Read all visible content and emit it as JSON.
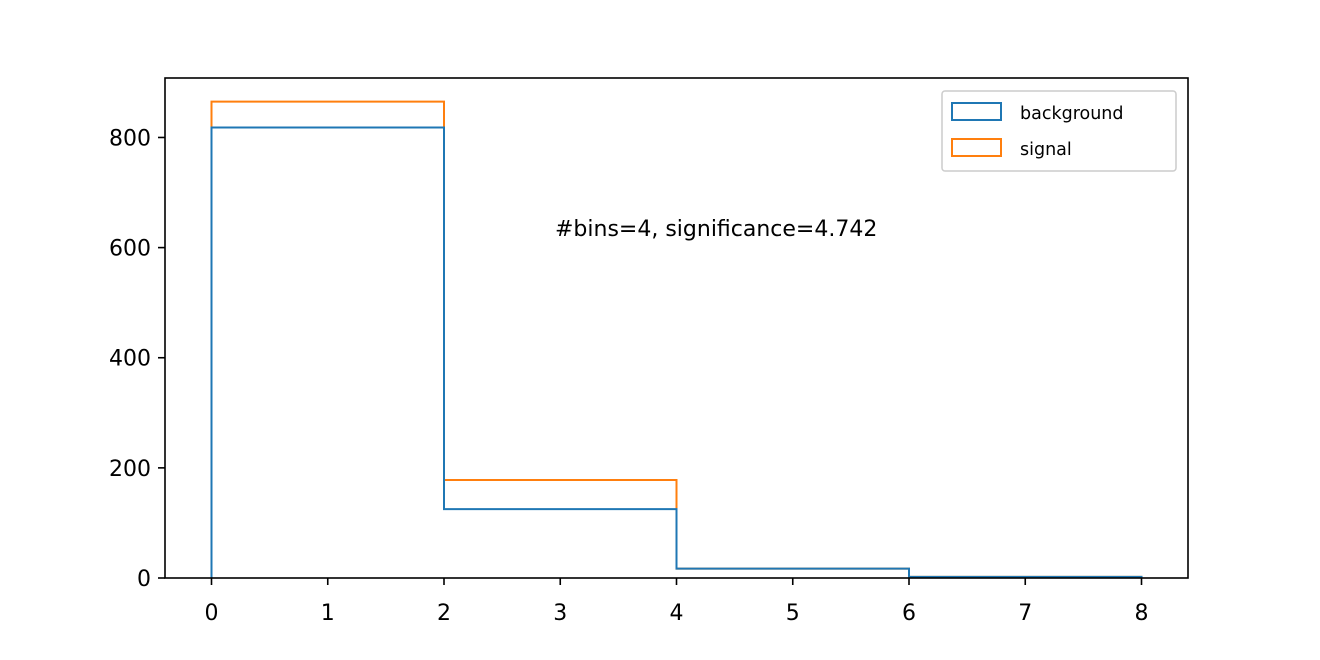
{
  "chart_data": {
    "type": "histogram-step",
    "annotation": "#bins=4, significance=4.742",
    "x_ticks": [
      0,
      1,
      2,
      3,
      4,
      5,
      6,
      7,
      8
    ],
    "y_ticks": [
      0,
      200,
      400,
      600,
      800
    ],
    "xlim": [
      -0.4,
      8.4
    ],
    "ylim": [
      0,
      908
    ],
    "bin_edges": [
      0,
      2,
      4,
      6,
      8
    ],
    "series": [
      {
        "name": "background",
        "color": "#1f77b4",
        "values": [
          818,
          125,
          17,
          2
        ]
      },
      {
        "name": "signal",
        "color": "#ff7f0e",
        "values": [
          865,
          178,
          17,
          2
        ]
      }
    ],
    "legend_position": "top-right",
    "grid": false
  }
}
